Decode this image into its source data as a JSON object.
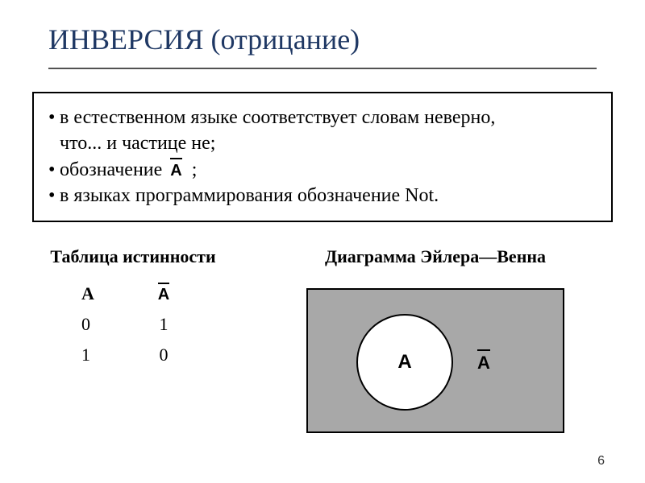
{
  "slide": {
    "title": "ИНВЕРСИЯ (отрицание)",
    "title_color": "#1f3864",
    "underline_color": "#525252",
    "bullets": [
      {
        "line1": "в естественном языке соответствует словам неверно,",
        "line2": "что... и частице не;"
      },
      {
        "prefix": "обозначение   ",
        "notation": "А",
        "suffix": " ;"
      },
      {
        "text": "в языках программирования обозначение Not."
      }
    ],
    "truth": {
      "title": "Таблица истинности",
      "col1_header": "А",
      "col2_notation": "А",
      "rows": [
        {
          "a": "0",
          "na": "1"
        },
        {
          "a": "1",
          "na": "0"
        }
      ]
    },
    "venn": {
      "title": "Диаграмма Эйлера—Венна",
      "box_bg": "#a8a8a8",
      "circle_bg": "#ffffff",
      "border_color": "#000000",
      "inner_label": "А",
      "outer_notation": "А"
    },
    "page_number": "6"
  }
}
